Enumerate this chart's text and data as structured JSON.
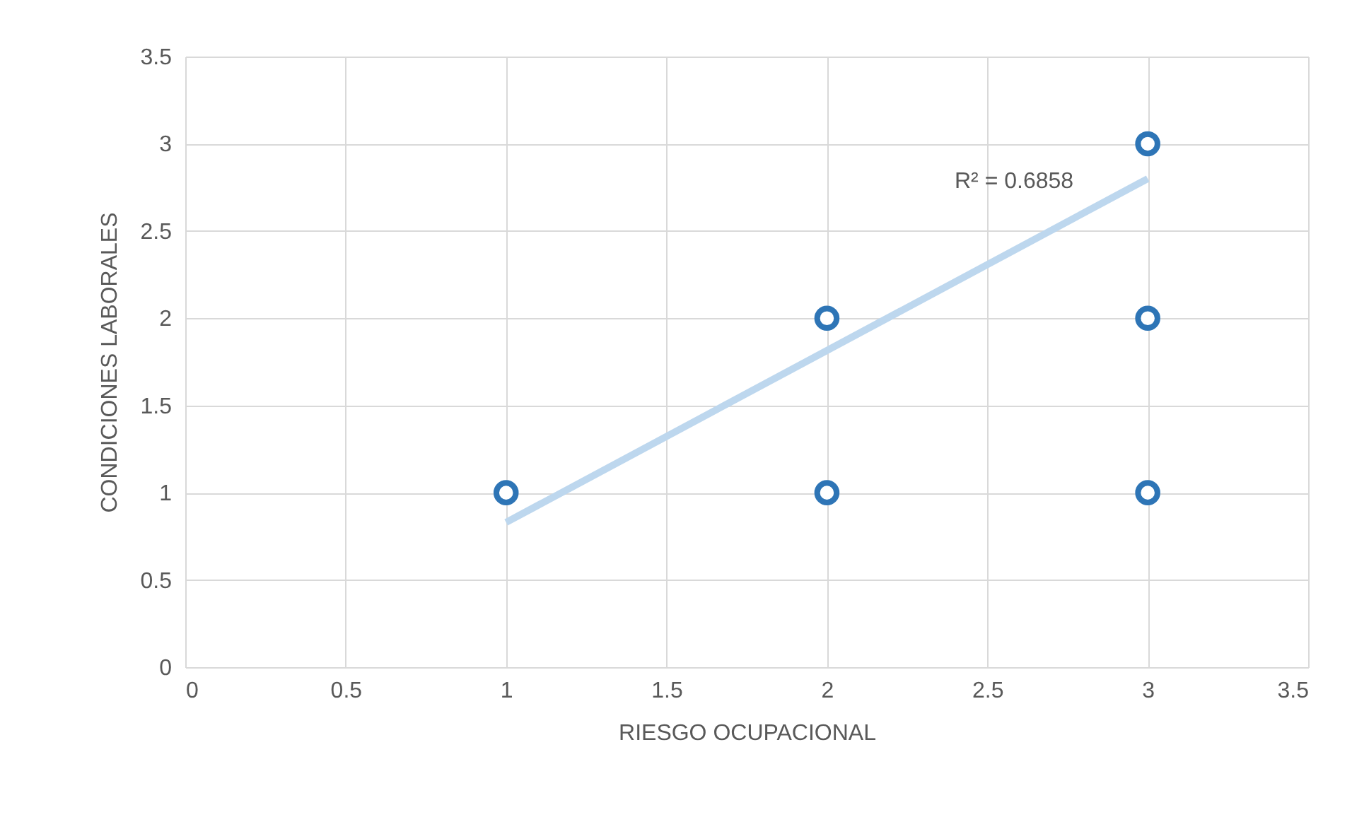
{
  "chart_data": {
    "type": "scatter",
    "xlabel": "RIESGO OCUPACIONAL",
    "ylabel": "CONDICIONES LABORALES",
    "xlim": [
      0,
      3.5
    ],
    "xticks": [
      0,
      0.5,
      1,
      1.5,
      2,
      2.5,
      3,
      3.5
    ],
    "ylim": [
      0,
      3.5
    ],
    "yticks": [
      0,
      0.5,
      1,
      1.5,
      2,
      2.5,
      3,
      3.5
    ],
    "grid": true,
    "series": [
      {
        "marker": "circle",
        "color": "#2e75b6",
        "x": [
          1,
          2,
          2,
          3,
          3,
          3
        ],
        "values": [
          1,
          1,
          2,
          1,
          2,
          3
        ]
      },
      {
        "type": "line",
        "color": "#bdd7ee",
        "x": [
          1,
          3
        ],
        "values": [
          0.83,
          2.8
        ]
      }
    ],
    "annotations": [
      "R² = 0.6858"
    ]
  }
}
